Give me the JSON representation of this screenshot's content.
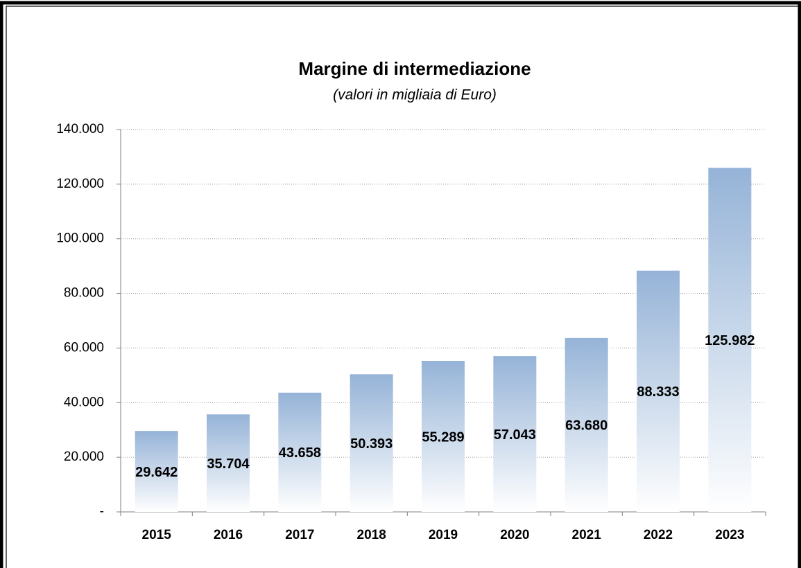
{
  "chart_data": {
    "type": "bar",
    "title": "Margine di intermediazione",
    "subtitle": "(valori in migliaia di Euro)",
    "categories": [
      "2015",
      "2016",
      "2017",
      "2018",
      "2019",
      "2020",
      "2021",
      "2022",
      "2023"
    ],
    "values": [
      29642,
      35704,
      43658,
      50393,
      55289,
      57043,
      63680,
      88333,
      125982
    ],
    "value_labels": [
      "29.642",
      "35.704",
      "43.658",
      "50.393",
      "55.289",
      "57.043",
      "63.680",
      "88.333",
      "125.982"
    ],
    "color": "#95b3d7",
    "ylim": [
      0,
      140000
    ],
    "yticks": [
      {
        "value": 0,
        "label": "-"
      },
      {
        "value": 20000,
        "label": "20.000"
      },
      {
        "value": 40000,
        "label": "40.000"
      },
      {
        "value": 60000,
        "label": "60.000"
      },
      {
        "value": 80000,
        "label": "80.000"
      },
      {
        "value": 100000,
        "label": "100.000"
      },
      {
        "value": 120000,
        "label": "120.000"
      },
      {
        "value": 140000,
        "label": "140.000"
      }
    ],
    "grid": true
  }
}
